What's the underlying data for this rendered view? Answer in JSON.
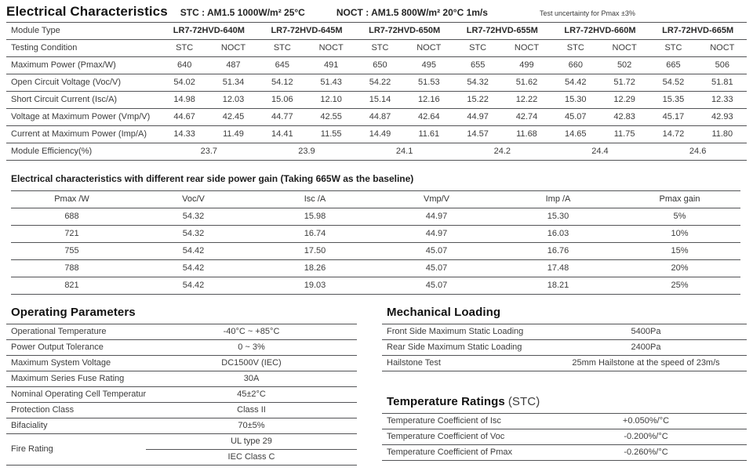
{
  "header": {
    "title": "Electrical Characteristics",
    "stc": "STC : AM1.5  1000W/m²  25°C",
    "noct": "NOCT : AM1.5  800W/m²  20°C  1m/s",
    "uncertainty": "Test uncertainty for Pmax ±3%"
  },
  "t1": {
    "labels": {
      "module_type": "Module Type",
      "testing_condition": "Testing Condition",
      "pmax": "Maximum Power (Pmax/W)",
      "voc": "Open Circuit Voltage (Voc/V)",
      "isc": "Short Circuit Current (Isc/A)",
      "vmp": "Voltage at Maximum Power (Vmp/V)",
      "imp": "Current at Maximum Power (Imp/A)",
      "eff": "Module Efficiency(%)"
    },
    "modules": [
      "LR7-72HVD-640M",
      "LR7-72HVD-645M",
      "LR7-72HVD-650M",
      "LR7-72HVD-655M",
      "LR7-72HVD-660M",
      "LR7-72HVD-665M"
    ],
    "cond": [
      "STC",
      "NOCT",
      "STC",
      "NOCT",
      "STC",
      "NOCT",
      "STC",
      "NOCT",
      "STC",
      "NOCT",
      "STC",
      "NOCT"
    ],
    "pmax": [
      "640",
      "487",
      "645",
      "491",
      "650",
      "495",
      "655",
      "499",
      "660",
      "502",
      "665",
      "506"
    ],
    "voc": [
      "54.02",
      "51.34",
      "54.12",
      "51.43",
      "54.22",
      "51.53",
      "54.32",
      "51.62",
      "54.42",
      "51.72",
      "54.52",
      "51.81"
    ],
    "isc": [
      "14.98",
      "12.03",
      "15.06",
      "12.10",
      "15.14",
      "12.16",
      "15.22",
      "12.22",
      "15.30",
      "12.29",
      "15.35",
      "12.33"
    ],
    "vmp": [
      "44.67",
      "42.45",
      "44.77",
      "42.55",
      "44.87",
      "42.64",
      "44.97",
      "42.74",
      "45.07",
      "42.83",
      "45.17",
      "42.93"
    ],
    "imp": [
      "14.33",
      "11.49",
      "14.41",
      "11.55",
      "14.49",
      "11.61",
      "14.57",
      "11.68",
      "14.65",
      "11.75",
      "14.72",
      "11.80"
    ],
    "eff": [
      "23.7",
      "23.9",
      "24.1",
      "24.2",
      "24.4",
      "24.6"
    ]
  },
  "t2": {
    "title": "Electrical characteristics with different rear side power gain (Taking 665W as the baseline)",
    "headers": [
      "Pmax /W",
      "Voc/V",
      "Isc /A",
      "Vmp/V",
      "Imp /A",
      "Pmax gain"
    ],
    "rows": [
      [
        "688",
        "54.32",
        "15.98",
        "44.97",
        "15.30",
        "5%"
      ],
      [
        "721",
        "54.32",
        "16.74",
        "44.97",
        "16.03",
        "10%"
      ],
      [
        "755",
        "54.42",
        "17.50",
        "45.07",
        "16.76",
        "15%"
      ],
      [
        "788",
        "54.42",
        "18.26",
        "45.07",
        "17.48",
        "20%"
      ],
      [
        "821",
        "54.42",
        "19.03",
        "45.07",
        "18.21",
        "25%"
      ]
    ]
  },
  "operating": {
    "title": "Operating Parameters",
    "rows": [
      {
        "label": "Operational Temperature",
        "value": "-40°C ~ +85°C"
      },
      {
        "label": "Power Output Tolerance",
        "value": "0 ~ 3%"
      },
      {
        "label": "Maximum System Voltage",
        "value": "DC1500V (IEC)"
      },
      {
        "label": "Maximum Series Fuse Rating",
        "value": "30A"
      },
      {
        "label": "Nominal Operating Cell Temperature",
        "value": "45±2°C"
      },
      {
        "label": "Protection Class",
        "value": "Class II"
      },
      {
        "label": "Bifaciality",
        "value": "70±5%"
      },
      {
        "label": "Fire Rating",
        "value": "UL type 29",
        "value2": "IEC Class C"
      }
    ]
  },
  "mechanical": {
    "title": "Mechanical Loading",
    "rows": [
      {
        "label": "Front Side Maximum Static Loading",
        "value": "5400Pa"
      },
      {
        "label": "Rear Side Maximum Static Loading",
        "value": "2400Pa"
      },
      {
        "label": "Hailstone Test",
        "value": "25mm Hailstone at the speed of 23m/s"
      }
    ]
  },
  "temperature": {
    "title": "Temperature Ratings",
    "title_suffix": "(STC)",
    "rows": [
      {
        "label": "Temperature Coefficient of Isc",
        "value": "+0.050%/°C"
      },
      {
        "label": "Temperature Coefficient of Voc",
        "value": "-0.200%/°C"
      },
      {
        "label": "Temperature Coefficient of Pmax",
        "value": "-0.260%/°C"
      }
    ]
  }
}
